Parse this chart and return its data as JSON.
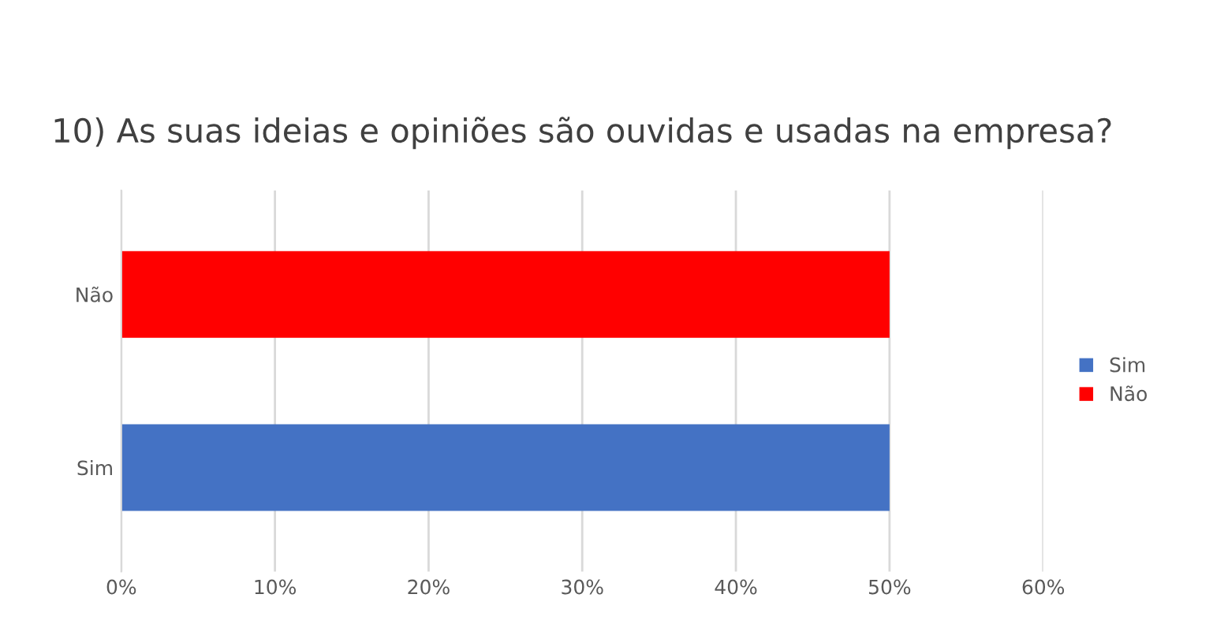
{
  "chart_data": {
    "type": "bar",
    "orientation": "horizontal",
    "stacked": true,
    "title": "10) As suas ideias e opiniões são ouvidas e usadas na empresa?",
    "categories": [
      "Não",
      "Sim"
    ],
    "series": [
      {
        "name": "Sim",
        "color": "#4472c4",
        "values": [
          null,
          50
        ]
      },
      {
        "name": "Não",
        "color": "#ff0000",
        "values": [
          50,
          null
        ]
      }
    ],
    "xlim": [
      0,
      60
    ],
    "xticks": [
      {
        "value": 0,
        "label": "0%"
      },
      {
        "value": 10,
        "label": "10%"
      },
      {
        "value": 20,
        "label": "20%"
      },
      {
        "value": 30,
        "label": "30%"
      },
      {
        "value": 40,
        "label": "40%"
      },
      {
        "value": 50,
        "label": "50%"
      },
      {
        "value": 60,
        "label": "60%"
      }
    ],
    "grid": "x",
    "legend": "right"
  }
}
